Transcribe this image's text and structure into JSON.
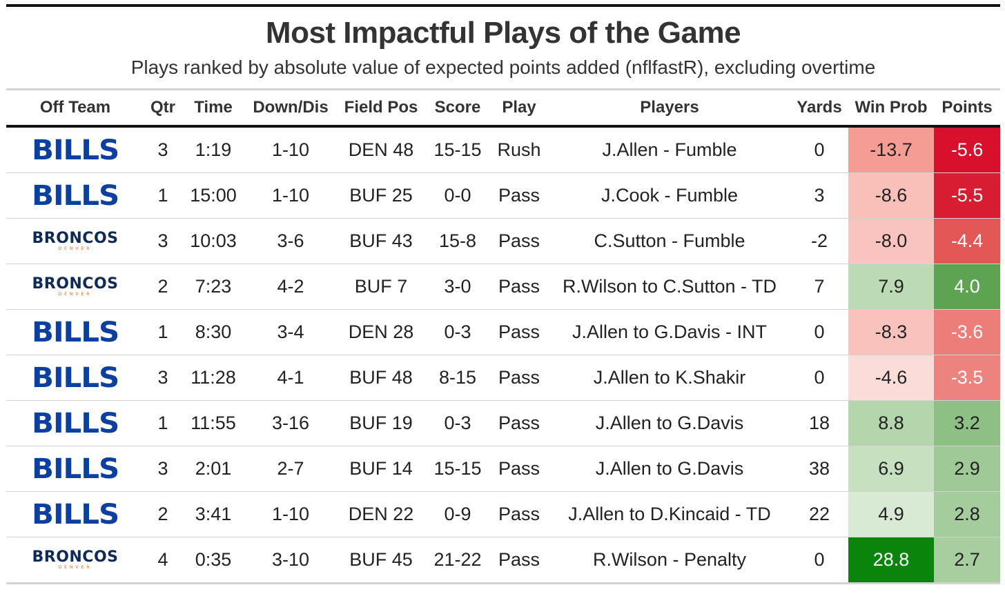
{
  "title": "Most Impactful Plays of the Game",
  "subtitle": "Plays ranked by absolute value of expected points added (nflfastR), excluding overtime",
  "columns": [
    "Off Team",
    "Qtr",
    "Time",
    "Down/Dis",
    "Field Pos",
    "Score",
    "Play",
    "Players",
    "Yards",
    "Win Prob",
    "Points"
  ],
  "logos": {
    "BILLS": {
      "text": "BILLS",
      "color": "#0b3fa0"
    },
    "BRONCOS": {
      "text": "BRONCOS",
      "sub": "DENVER",
      "color": "#0e2a55",
      "sub_color": "#e36a1c"
    }
  },
  "rows": [
    {
      "team": "BILLS",
      "qtr": "3",
      "time": "1:19",
      "down": "1-10",
      "field": "DEN 48",
      "score": "15-15",
      "play": "Rush",
      "players": "J.Allen - Fumble",
      "yards": "0",
      "winprob": "-13.7",
      "points": "-5.6",
      "winprob_color": "#f59d95",
      "points_color": "#d8102c",
      "points_text_color": "#ffffff",
      "winprob_text_color": "#222222"
    },
    {
      "team": "BILLS",
      "qtr": "1",
      "time": "15:00",
      "down": "1-10",
      "field": "BUF 25",
      "score": "0-0",
      "play": "Pass",
      "players": "J.Cook - Fumble",
      "yards": "3",
      "winprob": "-8.6",
      "points": "-5.5",
      "winprob_color": "#f9c0ba",
      "points_color": "#d81d33",
      "points_text_color": "#ffffff",
      "winprob_text_color": "#222222"
    },
    {
      "team": "BRONCOS",
      "qtr": "3",
      "time": "10:03",
      "down": "3-6",
      "field": "BUF 43",
      "score": "15-8",
      "play": "Pass",
      "players": "C.Sutton - Fumble",
      "yards": "-2",
      "winprob": "-8.0",
      "points": "-4.4",
      "winprob_color": "#f9c4bf",
      "points_color": "#e35756",
      "points_text_color": "#ffffff",
      "winprob_text_color": "#222222"
    },
    {
      "team": "BRONCOS",
      "qtr": "2",
      "time": "7:23",
      "down": "4-2",
      "field": "BUF 7",
      "score": "3-0",
      "play": "Pass",
      "players": "R.Wilson to C.Sutton - TD",
      "yards": "7",
      "winprob": "7.9",
      "points": "4.0",
      "winprob_color": "#bcdbb5",
      "points_color": "#5ea352",
      "points_text_color": "#ffffff",
      "winprob_text_color": "#222222"
    },
    {
      "team": "BILLS",
      "qtr": "1",
      "time": "8:30",
      "down": "3-4",
      "field": "DEN 28",
      "score": "0-3",
      "play": "Pass",
      "players": "J.Allen to G.Davis - INT",
      "yards": "0",
      "winprob": "-8.3",
      "points": "-3.6",
      "winprob_color": "#f9c2bd",
      "points_color": "#ec7d78",
      "points_text_color": "#ffffff",
      "winprob_text_color": "#222222"
    },
    {
      "team": "BILLS",
      "qtr": "3",
      "time": "11:28",
      "down": "4-1",
      "field": "BUF 48",
      "score": "8-15",
      "play": "Pass",
      "players": "J.Allen to K.Shakir",
      "yards": "0",
      "winprob": "-4.6",
      "points": "-3.5",
      "winprob_color": "#fcdcd9",
      "points_color": "#ed837e",
      "points_text_color": "#ffffff",
      "winprob_text_color": "#222222"
    },
    {
      "team": "BILLS",
      "qtr": "1",
      "time": "11:55",
      "down": "3-16",
      "field": "BUF 19",
      "score": "0-3",
      "play": "Pass",
      "players": "J.Allen to G.Davis",
      "yards": "18",
      "winprob": "8.8",
      "points": "3.2",
      "winprob_color": "#b4d6ad",
      "points_color": "#8ec085",
      "points_text_color": "#222222",
      "winprob_text_color": "#222222"
    },
    {
      "team": "BILLS",
      "qtr": "3",
      "time": "2:01",
      "down": "2-7",
      "field": "BUF 14",
      "score": "15-15",
      "play": "Pass",
      "players": "J.Allen to G.Davis",
      "yards": "38",
      "winprob": "6.9",
      "points": "2.9",
      "winprob_color": "#c6e0c0",
      "points_color": "#9fc997",
      "points_text_color": "#222222",
      "winprob_text_color": "#222222"
    },
    {
      "team": "BILLS",
      "qtr": "2",
      "time": "3:41",
      "down": "1-10",
      "field": "DEN 22",
      "score": "0-9",
      "play": "Pass",
      "players": "J.Allen to D.Kincaid - TD",
      "yards": "22",
      "winprob": "4.9",
      "points": "2.8",
      "winprob_color": "#d8e9d4",
      "points_color": "#a4cc9c",
      "points_text_color": "#222222",
      "winprob_text_color": "#222222"
    },
    {
      "team": "BRONCOS",
      "qtr": "4",
      "time": "0:35",
      "down": "3-10",
      "field": "BUF 45",
      "score": "21-22",
      "play": "Pass",
      "players": "R.Wilson - Penalty",
      "yards": "0",
      "winprob": "28.8",
      "points": "2.7",
      "winprob_color": "#0a840a",
      "points_color": "#a8cea0",
      "points_text_color": "#222222",
      "winprob_text_color": "#ffffff"
    }
  ]
}
